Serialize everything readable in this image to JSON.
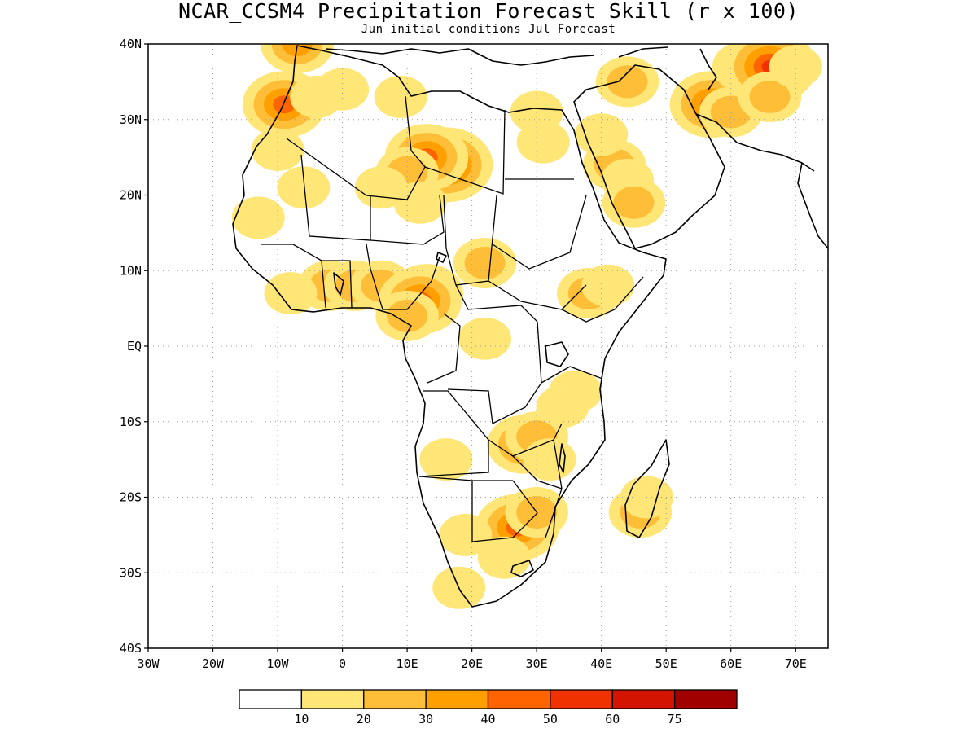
{
  "title": "NCAR_CCSM4 Precipitation Forecast Skill (r x 100)",
  "subtitle": "Jun initial conditions  Jul Forecast",
  "map": {
    "lon_range": [
      -30,
      75
    ],
    "lat_range": [
      -40,
      40
    ],
    "lat_ticks": [
      {
        "value": 40,
        "label": "40N"
      },
      {
        "value": 30,
        "label": "30N"
      },
      {
        "value": 20,
        "label": "20N"
      },
      {
        "value": 10,
        "label": "10N"
      },
      {
        "value": 0,
        "label": "EQ"
      },
      {
        "value": -10,
        "label": "10S"
      },
      {
        "value": -20,
        "label": "20S"
      },
      {
        "value": -30,
        "label": "30S"
      },
      {
        "value": -40,
        "label": "40S"
      }
    ],
    "lon_ticks": [
      {
        "value": -30,
        "label": "30W"
      },
      {
        "value": -20,
        "label": "20W"
      },
      {
        "value": -10,
        "label": "10W"
      },
      {
        "value": 0,
        "label": "0"
      },
      {
        "value": 10,
        "label": "10E"
      },
      {
        "value": 20,
        "label": "20E"
      },
      {
        "value": 30,
        "label": "30E"
      },
      {
        "value": 40,
        "label": "40E"
      },
      {
        "value": 50,
        "label": "50E"
      },
      {
        "value": 60,
        "label": "60E"
      },
      {
        "value": 70,
        "label": "70E"
      }
    ],
    "grid": true,
    "skill_levels": [
      {
        "lon": 14,
        "lat": 24,
        "level": 2
      },
      {
        "lon": 16,
        "lat": 24,
        "level": 5
      },
      {
        "lon": 13,
        "lat": 25,
        "level": 4
      },
      {
        "lon": 10,
        "lat": 23,
        "level": 2
      },
      {
        "lon": 6,
        "lat": 21,
        "level": 1
      },
      {
        "lon": 12,
        "lat": 19,
        "level": 1
      },
      {
        "lon": -8,
        "lat": 33,
        "level": 2
      },
      {
        "lon": -9,
        "lat": 32,
        "level": 4
      },
      {
        "lon": -4,
        "lat": 33,
        "level": 1
      },
      {
        "lon": 0,
        "lat": 34,
        "level": 1
      },
      {
        "lon": 9,
        "lat": 33,
        "level": 1
      },
      {
        "lon": -10,
        "lat": 26,
        "level": 1
      },
      {
        "lon": -6,
        "lat": 21,
        "level": 1
      },
      {
        "lon": -13,
        "lat": 17,
        "level": 1
      },
      {
        "lon": -2,
        "lat": 8,
        "level": 2
      },
      {
        "lon": 2,
        "lat": 8,
        "level": 2
      },
      {
        "lon": -8,
        "lat": 7,
        "level": 1
      },
      {
        "lon": 6,
        "lat": 8,
        "level": 2
      },
      {
        "lon": 13,
        "lat": 7,
        "level": 3
      },
      {
        "lon": 12,
        "lat": 6,
        "level": 4
      },
      {
        "lon": 10,
        "lat": 4,
        "level": 2
      },
      {
        "lon": 22,
        "lat": 11,
        "level": 2
      },
      {
        "lon": 22,
        "lat": 1,
        "level": 1
      },
      {
        "lon": 38,
        "lat": 7,
        "level": 2
      },
      {
        "lon": 41,
        "lat": 8,
        "level": 1
      },
      {
        "lon": 36,
        "lat": -6,
        "level": 1
      },
      {
        "lon": 34,
        "lat": -8,
        "level": 1
      },
      {
        "lon": 28,
        "lat": -13,
        "level": 3
      },
      {
        "lon": 30,
        "lat": -12,
        "level": 2
      },
      {
        "lon": 16,
        "lat": -15,
        "level": 1
      },
      {
        "lon": 32,
        "lat": -15,
        "level": 1
      },
      {
        "lon": 27,
        "lat": -24,
        "level": 4
      },
      {
        "lon": 30,
        "lat": -22,
        "level": 2
      },
      {
        "lon": 19,
        "lat": -25,
        "level": 1
      },
      {
        "lon": 25,
        "lat": -28,
        "level": 1
      },
      {
        "lon": 46,
        "lat": -22,
        "level": 2
      },
      {
        "lon": 47,
        "lat": -20,
        "level": 1
      },
      {
        "lon": 18,
        "lat": -32,
        "level": 1
      },
      {
        "lon": 42,
        "lat": 24,
        "level": 2
      },
      {
        "lon": 44,
        "lat": 22,
        "level": 1
      },
      {
        "lon": 45,
        "lat": 19,
        "level": 2
      },
      {
        "lon": 40,
        "lat": 28,
        "level": 1
      },
      {
        "lon": 44,
        "lat": 35,
        "level": 2
      },
      {
        "lon": 57,
        "lat": 32,
        "level": 4
      },
      {
        "lon": 60,
        "lat": 31,
        "level": 2
      },
      {
        "lon": 62,
        "lat": 37,
        "level": 2
      },
      {
        "lon": 66,
        "lat": 37,
        "level": 5
      },
      {
        "lon": 66,
        "lat": 33,
        "level": 2
      },
      {
        "lon": 70,
        "lat": 37,
        "level": 1
      },
      {
        "lon": -7,
        "lat": 40,
        "level": 3
      },
      {
        "lon": 30,
        "lat": 31,
        "level": 1
      },
      {
        "lon": 31,
        "lat": 27,
        "level": 1
      }
    ]
  },
  "colorbar": {
    "labels": [
      "10",
      "20",
      "30",
      "40",
      "50",
      "60",
      "75"
    ],
    "colors": [
      "#ffffff",
      "#ffe677",
      "#ffbe37",
      "#ffa000",
      "#ff6400",
      "#f03200",
      "#d21400",
      "#a00000"
    ]
  }
}
